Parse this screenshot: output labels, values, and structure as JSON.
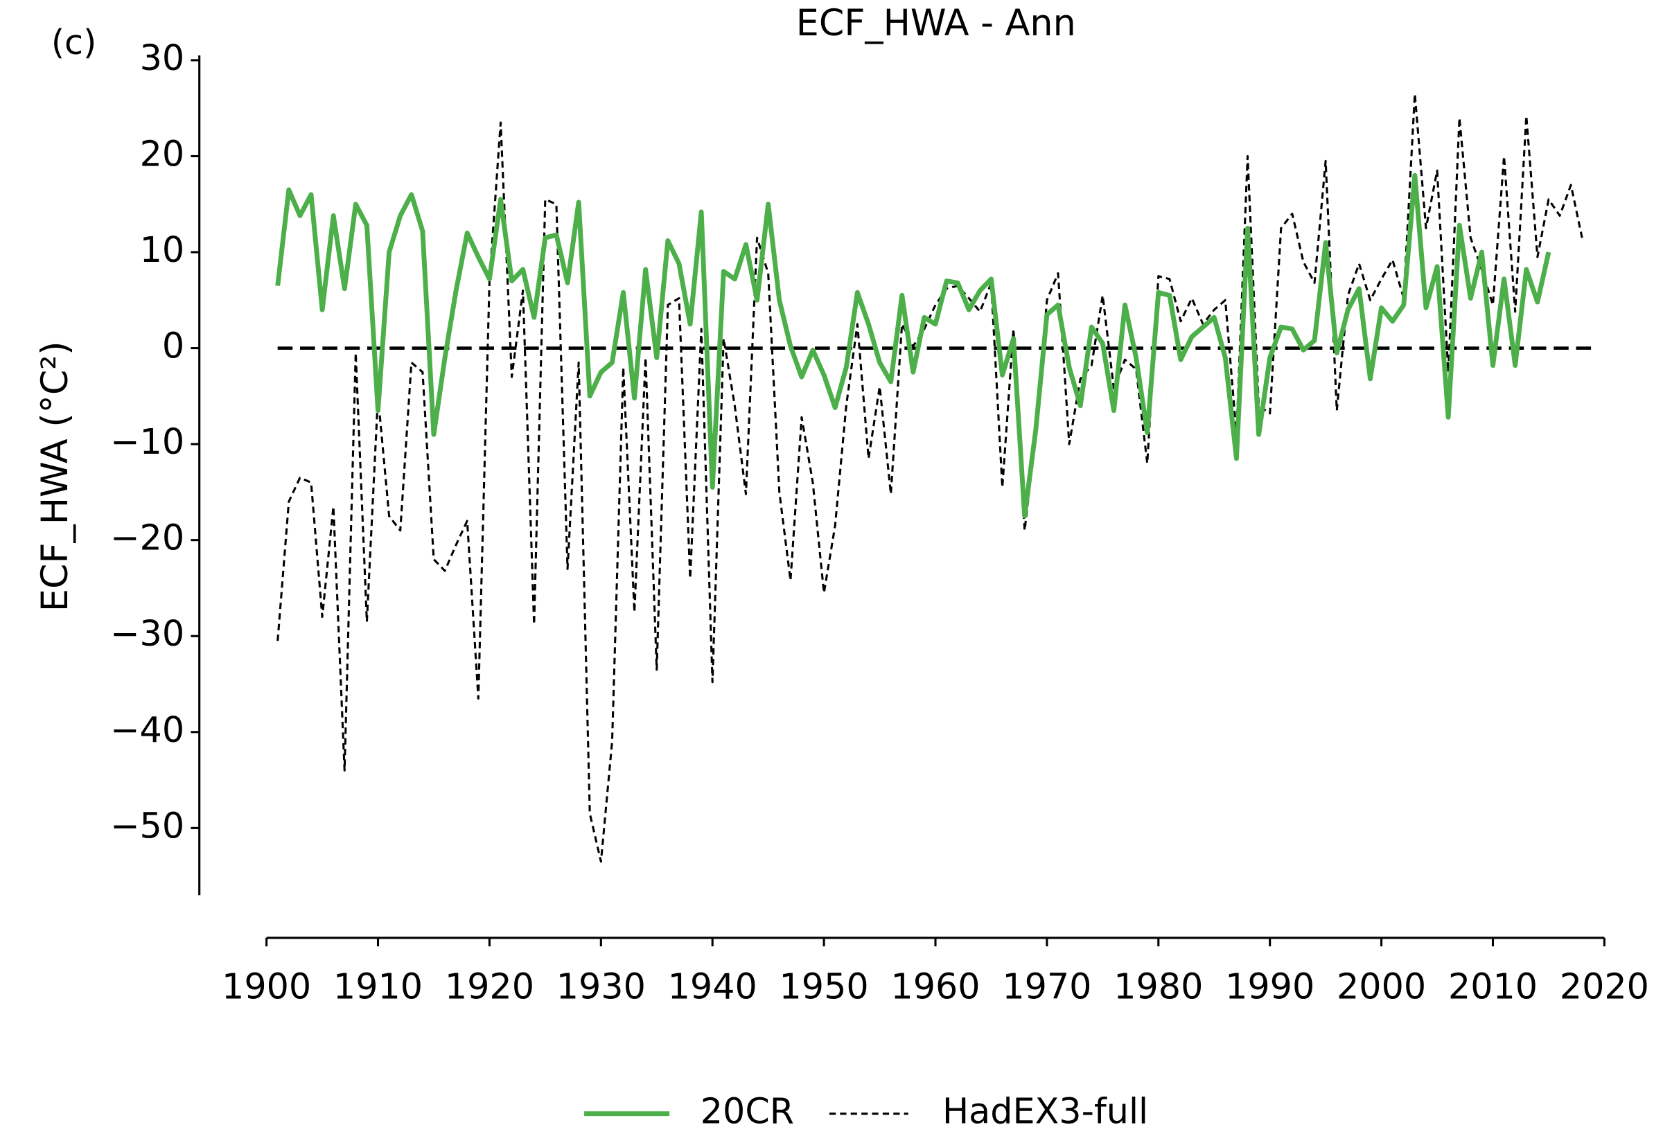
{
  "chart_data": {
    "type": "line",
    "title": "ECF_HWA - Ann",
    "panel_label": "(c)",
    "y_label": "ECF_HWA (°C²)",
    "x": [
      1901,
      1902,
      1903,
      1904,
      1905,
      1906,
      1907,
      1908,
      1909,
      1910,
      1911,
      1912,
      1913,
      1914,
      1915,
      1916,
      1917,
      1918,
      1919,
      1920,
      1921,
      1922,
      1923,
      1924,
      1925,
      1926,
      1927,
      1928,
      1929,
      1930,
      1931,
      1932,
      1933,
      1934,
      1935,
      1936,
      1937,
      1938,
      1939,
      1940,
      1941,
      1942,
      1943,
      1944,
      1945,
      1946,
      1947,
      1948,
      1949,
      1950,
      1951,
      1952,
      1953,
      1954,
      1955,
      1956,
      1957,
      1958,
      1959,
      1960,
      1961,
      1962,
      1963,
      1964,
      1965,
      1966,
      1967,
      1968,
      1969,
      1970,
      1971,
      1972,
      1973,
      1974,
      1975,
      1976,
      1977,
      1978,
      1979,
      1980,
      1981,
      1982,
      1983,
      1984,
      1985,
      1986,
      1987,
      1988,
      1989,
      1990,
      1991,
      1992,
      1993,
      1994,
      1995,
      1996,
      1997,
      1998,
      1999,
      2000,
      2001,
      2002,
      2003,
      2004,
      2005,
      2006,
      2007,
      2008,
      2009,
      2010,
      2011,
      2012,
      2013,
      2014,
      2015,
      2016,
      2017,
      2018
    ],
    "series": [
      {
        "name": "20CR",
        "color": "#4daf4a",
        "style": "solid",
        "values": [
          6.5,
          16.5,
          13.8,
          16,
          4,
          13.8,
          6.2,
          15,
          12.8,
          -6.5,
          10,
          13.8,
          16,
          12.2,
          -9,
          -1,
          6,
          12,
          9.5,
          7.2,
          15.5,
          7,
          8.2,
          3.2,
          11.5,
          11.8,
          6.8,
          15.2,
          -5,
          -2.5,
          -1.5,
          5.8,
          -5.2,
          8.2,
          -1,
          11.2,
          8.8,
          2.5,
          14.2,
          -14.5,
          8,
          7.2,
          10.8,
          5,
          15,
          5,
          0.2,
          -3,
          -0.2,
          -2.8,
          -6.2,
          -2,
          5.8,
          2.5,
          -1.5,
          -3.5,
          5.5,
          -2.5,
          3.2,
          2.5,
          7,
          6.8,
          4,
          6,
          7.2,
          -2.8,
          1,
          -17.5,
          -8.5,
          3.5,
          4.5,
          -2,
          -6,
          2.2,
          0.5,
          -6.5,
          4.5,
          -1,
          -8.8,
          5.8,
          5.5,
          -1.2,
          1.2,
          2.2,
          3.2,
          -1,
          -11.5,
          12.5,
          -9,
          -1,
          2.2,
          2,
          -0.2,
          0.8,
          11,
          -0.5,
          4,
          6.2,
          -3.2,
          4.2,
          2.8,
          4.5,
          18,
          4.2,
          8.5,
          -7.2,
          12.8,
          5.2,
          10,
          -1.8,
          7.2,
          -1.8,
          8.2,
          4.8,
          10,
          null,
          null,
          null
        ]
      },
      {
        "name": "HadEX3-full",
        "color": "#000000",
        "style": "dashed",
        "values": [
          -30.5,
          -16,
          -13.5,
          -14,
          -28,
          -16.5,
          -44,
          -0.5,
          -28.5,
          -5,
          -17.5,
          -19,
          -1.5,
          -2.5,
          -22,
          -23.2,
          -20.5,
          -18,
          -36.5,
          7,
          23.5,
          -3,
          6,
          -28.8,
          15.5,
          15,
          -23,
          -1.5,
          -48.5,
          -53.5,
          -41,
          -2,
          -27.5,
          -1,
          -33.5,
          4.5,
          5.2,
          -24,
          2,
          -34.8,
          1,
          -6,
          -15.2,
          11.5,
          7.8,
          -15,
          -24.2,
          -7.2,
          -14,
          -25.5,
          -18.5,
          -6,
          2.5,
          -11.5,
          -4,
          -15.2,
          2.5,
          0.2,
          2,
          4.5,
          6.2,
          6.5,
          5.2,
          3.8,
          6.8,
          -14.5,
          2,
          -19,
          -9,
          5,
          7.8,
          -10,
          -3.2,
          -1.8,
          5.5,
          -4.2,
          -1.2,
          -2.2,
          -12,
          7.5,
          7.2,
          2.8,
          5.2,
          2.5,
          4,
          5,
          -9,
          20,
          -6,
          -6.8,
          12.5,
          14,
          9,
          6.8,
          19.5,
          -6.5,
          5.5,
          8.8,
          5,
          7.2,
          9.2,
          5.2,
          26.5,
          12.5,
          18.5,
          -2.5,
          24,
          11.5,
          8.2,
          4.5,
          20,
          3.8,
          24.2,
          9.5,
          15.5,
          13.8,
          17,
          11.5
        ]
      }
    ],
    "hline": 0,
    "xlim": [
      1900,
      2020
    ],
    "xticks": [
      1900,
      1910,
      1920,
      1930,
      1940,
      1950,
      1960,
      1970,
      1980,
      1990,
      2000,
      2010,
      2020
    ],
    "ylim": [
      -57,
      30.5
    ],
    "yticks": [
      {
        "value": -50,
        "label": "−50"
      },
      {
        "value": -40,
        "label": "−40"
      },
      {
        "value": -30,
        "label": "−30"
      },
      {
        "value": -20,
        "label": "−20"
      },
      {
        "value": -10,
        "label": "−10"
      },
      0,
      10,
      20,
      30
    ],
    "legend": "bottom"
  }
}
